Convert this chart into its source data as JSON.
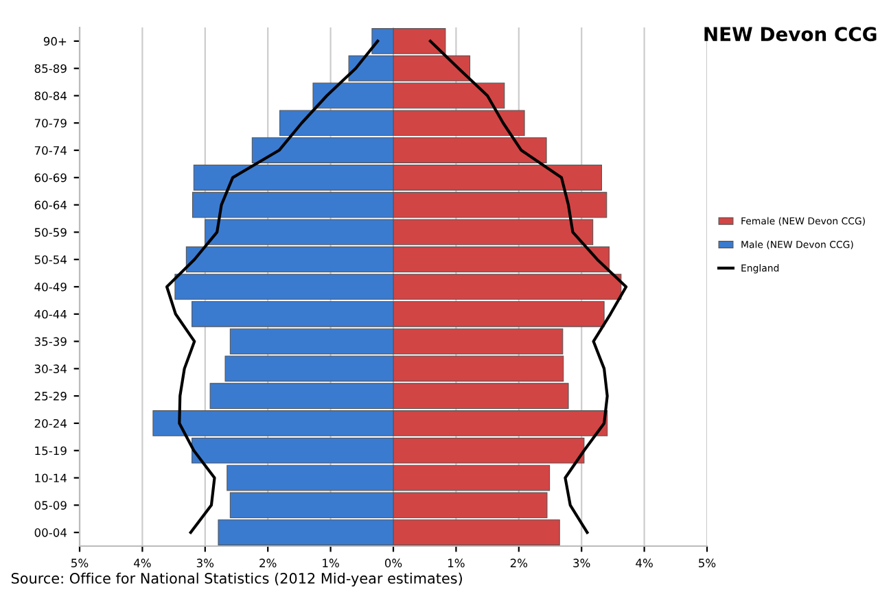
{
  "chart_data": {
    "type": "bar",
    "orientation": "horizontal",
    "title": "NEW Devon CCG",
    "categories": [
      "90+",
      "85-89",
      "80-84",
      "70-79",
      "70-74",
      "60-69",
      "60-64",
      "50-59",
      "50-54",
      "40-49",
      "40-44",
      "35-39",
      "30-34",
      "25-29",
      "20-24",
      "15-19",
      "10-14",
      "05-09",
      "00-04"
    ],
    "series": [
      {
        "name": "Female (NEW Devon CCG)",
        "color": "#d24545",
        "values": [
          0.83,
          1.22,
          1.77,
          2.09,
          2.44,
          3.32,
          3.4,
          3.18,
          3.44,
          3.63,
          3.36,
          2.7,
          2.71,
          2.79,
          3.41,
          3.04,
          2.49,
          2.45,
          2.65
        ]
      },
      {
        "name": "Male (NEW Devon CCG)",
        "color": "#3a7bd0",
        "values": [
          -0.34,
          -0.71,
          -1.28,
          -1.81,
          -2.25,
          -3.18,
          -3.2,
          -3.0,
          -3.3,
          -3.48,
          -3.21,
          -2.6,
          -2.68,
          -2.92,
          -3.83,
          -3.21,
          -2.65,
          -2.6,
          -2.79
        ]
      },
      {
        "name": "England",
        "type": "line",
        "color": "#000000",
        "values": [
          0.59,
          1.04,
          1.5,
          1.75,
          2.04,
          2.68,
          2.79,
          2.86,
          3.25,
          3.71,
          3.46,
          3.19,
          3.36,
          3.41,
          3.36,
          3.04,
          2.74,
          2.82,
          3.09
        ]
      },
      {
        "type": "line",
        "color": "#000000",
        "values": [
          -0.25,
          -0.6,
          -1.06,
          -1.46,
          -1.82,
          -2.56,
          -2.74,
          -2.81,
          -3.17,
          -3.61,
          -3.47,
          -3.17,
          -3.33,
          -3.4,
          -3.41,
          -3.18,
          -2.85,
          -2.9,
          -3.23
        ]
      }
    ],
    "xlim": [
      -5,
      5
    ],
    "xticks": [
      {
        "value": -5,
        "label": "5%"
      },
      {
        "value": -4,
        "label": "4%"
      },
      {
        "value": -3,
        "label": "3%"
      },
      {
        "value": -2,
        "label": "2%"
      },
      {
        "value": -1,
        "label": "1%"
      },
      {
        "value": 0,
        "label": "0%"
      },
      {
        "value": 1,
        "label": "1%"
      },
      {
        "value": 2,
        "label": "2%"
      },
      {
        "value": 3,
        "label": "3%"
      },
      {
        "value": 4,
        "label": "4%"
      },
      {
        "value": 5,
        "label": "5%"
      }
    ],
    "stacked": true,
    "grid": "x",
    "legend": "right",
    "marker": "none",
    "line_style": "solid",
    "annotations": [
      "Source: Office for National Statistics (2012 Mid-year estimates)"
    ]
  }
}
